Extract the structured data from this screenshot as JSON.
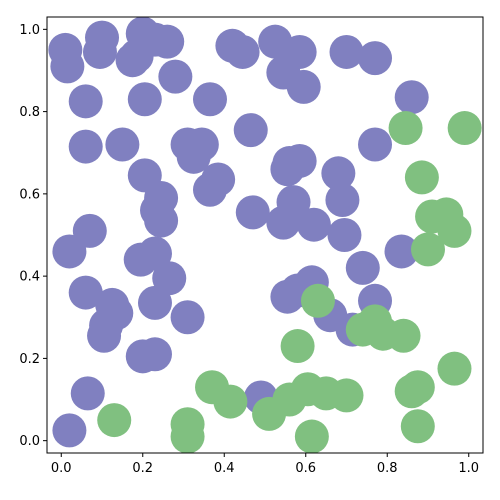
{
  "chart_data": {
    "type": "scatter",
    "title": "",
    "xlabel": "",
    "ylabel": "",
    "xlim": [
      -0.035,
      1.035
    ],
    "ylim": [
      -0.03,
      1.03
    ],
    "xticks": [
      0.0,
      0.2,
      0.4,
      0.6,
      0.8,
      1.0
    ],
    "yticks": [
      0.0,
      0.2,
      0.4,
      0.6,
      0.8,
      1.0
    ],
    "xtick_labels": [
      "0.0",
      "0.2",
      "0.4",
      "0.6",
      "0.8",
      "1.0"
    ],
    "ytick_labels": [
      "0.0",
      "0.2",
      "0.4",
      "0.6",
      "0.8",
      "1.0"
    ],
    "grid": false,
    "legend": "none",
    "series": [
      {
        "color": "#8080c0",
        "points": [
          [
            0.01,
            0.95
          ],
          [
            0.015,
            0.91
          ],
          [
            0.1,
            0.98
          ],
          [
            0.095,
            0.945
          ],
          [
            0.2,
            0.99
          ],
          [
            0.23,
            0.975
          ],
          [
            0.26,
            0.97
          ],
          [
            0.175,
            0.925
          ],
          [
            0.185,
            0.935
          ],
          [
            0.28,
            0.885
          ],
          [
            0.42,
            0.96
          ],
          [
            0.445,
            0.945
          ],
          [
            0.525,
            0.97
          ],
          [
            0.545,
            0.895
          ],
          [
            0.585,
            0.945
          ],
          [
            0.595,
            0.86
          ],
          [
            0.7,
            0.945
          ],
          [
            0.77,
            0.93
          ],
          [
            0.86,
            0.835
          ],
          [
            0.06,
            0.825
          ],
          [
            0.205,
            0.83
          ],
          [
            0.365,
            0.83
          ],
          [
            0.465,
            0.755
          ],
          [
            0.06,
            0.715
          ],
          [
            0.15,
            0.72
          ],
          [
            0.31,
            0.72
          ],
          [
            0.345,
            0.72
          ],
          [
            0.325,
            0.69
          ],
          [
            0.385,
            0.635
          ],
          [
            0.365,
            0.61
          ],
          [
            0.205,
            0.645
          ],
          [
            0.245,
            0.59
          ],
          [
            0.235,
            0.56
          ],
          [
            0.245,
            0.535
          ],
          [
            0.56,
            0.675
          ],
          [
            0.585,
            0.68
          ],
          [
            0.555,
            0.66
          ],
          [
            0.68,
            0.65
          ],
          [
            0.77,
            0.72
          ],
          [
            0.69,
            0.585
          ],
          [
            0.47,
            0.555
          ],
          [
            0.545,
            0.53
          ],
          [
            0.57,
            0.58
          ],
          [
            0.62,
            0.525
          ],
          [
            0.695,
            0.5
          ],
          [
            0.07,
            0.51
          ],
          [
            0.02,
            0.46
          ],
          [
            0.195,
            0.44
          ],
          [
            0.23,
            0.455
          ],
          [
            0.265,
            0.395
          ],
          [
            0.74,
            0.42
          ],
          [
            0.835,
            0.46
          ],
          [
            0.06,
            0.36
          ],
          [
            0.125,
            0.33
          ],
          [
            0.135,
            0.31
          ],
          [
            0.11,
            0.28
          ],
          [
            0.105,
            0.255
          ],
          [
            0.23,
            0.335
          ],
          [
            0.31,
            0.3
          ],
          [
            0.555,
            0.35
          ],
          [
            0.58,
            0.365
          ],
          [
            0.615,
            0.385
          ],
          [
            0.66,
            0.305
          ],
          [
            0.715,
            0.27
          ],
          [
            0.77,
            0.34
          ],
          [
            0.2,
            0.205
          ],
          [
            0.23,
            0.21
          ],
          [
            0.065,
            0.115
          ],
          [
            0.02,
            0.025
          ],
          [
            0.49,
            0.105
          ]
        ]
      },
      {
        "color": "#80c080",
        "points": [
          [
            0.845,
            0.76
          ],
          [
            0.99,
            0.76
          ],
          [
            0.885,
            0.64
          ],
          [
            0.91,
            0.545
          ],
          [
            0.945,
            0.55
          ],
          [
            0.965,
            0.51
          ],
          [
            0.9,
            0.465
          ],
          [
            0.63,
            0.34
          ],
          [
            0.77,
            0.29
          ],
          [
            0.79,
            0.26
          ],
          [
            0.84,
            0.255
          ],
          [
            0.74,
            0.27
          ],
          [
            0.58,
            0.23
          ],
          [
            0.37,
            0.13
          ],
          [
            0.415,
            0.095
          ],
          [
            0.51,
            0.065
          ],
          [
            0.56,
            0.1
          ],
          [
            0.605,
            0.125
          ],
          [
            0.65,
            0.115
          ],
          [
            0.7,
            0.11
          ],
          [
            0.13,
            0.05
          ],
          [
            0.31,
            0.04
          ],
          [
            0.31,
            0.01
          ],
          [
            0.615,
            0.01
          ],
          [
            0.875,
            0.13
          ],
          [
            0.86,
            0.12
          ],
          [
            0.875,
            0.035
          ],
          [
            0.965,
            0.175
          ]
        ]
      }
    ]
  }
}
